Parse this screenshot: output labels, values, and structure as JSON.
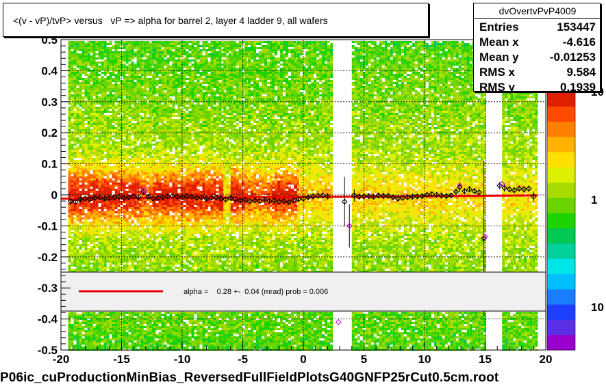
{
  "title": "<(v - vP)/tvP> versus   vP => alpha for barrel 2, layer 4 ladder 9, all wafers",
  "stats": {
    "name": "dvOvertvPvP4009",
    "rows": [
      {
        "key": "Entries",
        "value": "153447"
      },
      {
        "key": "Mean x",
        "value": "-4.616"
      },
      {
        "key": "Mean y",
        "value": "-0.01253"
      },
      {
        "key": "RMS x",
        "value": "9.584"
      },
      {
        "key": "RMS y",
        "value": "0.1939"
      }
    ]
  },
  "fit_legend": {
    "line_color": "#ee0000",
    "text": "alpha =    0.28 +-  0.04 (mrad) prob = 0.006"
  },
  "footer": "P06ic_cuProductionMinBias_ReversedFullFieldPlotsG40GNFP25rCut0.5cm.root",
  "palette": {
    "labels": [
      "10",
      "1",
      "10"
    ],
    "colors": [
      "#9900cc",
      "#5a2fe6",
      "#1f3fff",
      "#1a7cff",
      "#00bfff",
      "#00e5e5",
      "#00d09a",
      "#00c853",
      "#1ed300",
      "#6ad400",
      "#a8dc00",
      "#ddf000",
      "#ffe000",
      "#ffb300",
      "#ff8000",
      "#ff4b00",
      "#e01e00"
    ]
  },
  "chart_data": {
    "type": "heatmap",
    "xlim": [
      -20,
      20
    ],
    "ylim": [
      -0.5,
      0.5
    ],
    "x_ticks": [
      "-20",
      "-15",
      "-10",
      "-5",
      "0",
      "5",
      "10",
      "15",
      "20"
    ],
    "y_ticks": [
      "-0.5",
      "-0.4",
      "-0.3",
      "-0.2",
      "-0.1",
      "0",
      "0.1",
      "0.2",
      "0.3",
      "0.4",
      "0.5"
    ],
    "grid": true,
    "band_columns": [
      {
        "x0": -19.4,
        "x1": -13.4,
        "w": 0.95
      },
      {
        "x0": -13.4,
        "x1": -12.4,
        "w": 0.75
      },
      {
        "x0": -12.4,
        "x1": -6.6,
        "w": 0.92
      },
      {
        "x0": -6.6,
        "x1": -6.0,
        "w": 0.5
      },
      {
        "x0": -6.0,
        "x1": -4.8,
        "w": 0.95
      },
      {
        "x0": -4.8,
        "x1": -2.6,
        "w": 0.7
      },
      {
        "x0": -2.6,
        "x1": -0.5,
        "w": 0.9
      },
      {
        "x0": -0.5,
        "x1": 2.3,
        "w": 0.55
      },
      {
        "x0": 4.0,
        "x1": 15.0,
        "w": 0.5
      },
      {
        "x0": 16.4,
        "x1": 19.2,
        "w": 0.45
      }
    ],
    "profile_points": [
      {
        "x": -19.2,
        "y": -0.02,
        "ey": 0.01
      },
      {
        "x": -18.8,
        "y": -0.022,
        "ey": 0.008
      },
      {
        "x": -18.4,
        "y": -0.015,
        "ey": 0.008
      },
      {
        "x": -18.0,
        "y": -0.012,
        "ey": 0.007
      },
      {
        "x": -17.6,
        "y": -0.014,
        "ey": 0.007
      },
      {
        "x": -17.2,
        "y": -0.01,
        "ey": 0.007
      },
      {
        "x": -16.8,
        "y": -0.008,
        "ey": 0.006
      },
      {
        "x": -16.4,
        "y": -0.012,
        "ey": 0.006
      },
      {
        "x": -16.0,
        "y": -0.01,
        "ey": 0.006
      },
      {
        "x": -15.6,
        "y": -0.008,
        "ey": 0.006
      },
      {
        "x": -15.2,
        "y": -0.006,
        "ey": 0.006
      },
      {
        "x": -14.8,
        "y": -0.01,
        "ey": 0.006
      },
      {
        "x": -14.4,
        "y": -0.008,
        "ey": 0.006
      },
      {
        "x": -14.0,
        "y": -0.005,
        "ey": 0.006
      },
      {
        "x": -13.6,
        "y": -0.008,
        "ey": 0.006
      },
      {
        "x": -13.2,
        "y": 0.01,
        "ey": 0.01
      },
      {
        "x": -12.8,
        "y": -0.006,
        "ey": 0.008
      },
      {
        "x": -12.4,
        "y": -0.012,
        "ey": 0.006
      },
      {
        "x": -12.0,
        "y": -0.01,
        "ey": 0.006
      },
      {
        "x": -11.6,
        "y": -0.008,
        "ey": 0.006
      },
      {
        "x": -11.2,
        "y": -0.005,
        "ey": 0.006
      },
      {
        "x": -10.8,
        "y": -0.003,
        "ey": 0.006
      },
      {
        "x": -10.4,
        "y": -0.006,
        "ey": 0.006
      },
      {
        "x": -10.0,
        "y": -0.008,
        "ey": 0.006
      },
      {
        "x": -9.6,
        "y": -0.004,
        "ey": 0.006
      },
      {
        "x": -9.2,
        "y": -0.006,
        "ey": 0.006
      },
      {
        "x": -8.8,
        "y": -0.01,
        "ey": 0.006
      },
      {
        "x": -8.4,
        "y": -0.008,
        "ey": 0.006
      },
      {
        "x": -8.0,
        "y": -0.012,
        "ey": 0.006
      },
      {
        "x": -7.6,
        "y": -0.01,
        "ey": 0.006
      },
      {
        "x": -7.2,
        "y": -0.008,
        "ey": 0.006
      },
      {
        "x": -6.8,
        "y": -0.012,
        "ey": 0.007
      },
      {
        "x": -6.4,
        "y": -0.015,
        "ey": 0.008
      },
      {
        "x": -6.0,
        "y": -0.01,
        "ey": 0.006
      },
      {
        "x": -5.6,
        "y": -0.014,
        "ey": 0.006
      },
      {
        "x": -5.2,
        "y": -0.018,
        "ey": 0.006
      },
      {
        "x": -4.8,
        "y": -0.016,
        "ey": 0.006
      },
      {
        "x": -4.4,
        "y": -0.02,
        "ey": 0.006
      },
      {
        "x": -4.0,
        "y": -0.018,
        "ey": 0.006
      },
      {
        "x": -3.6,
        "y": -0.02,
        "ey": 0.006
      },
      {
        "x": -3.2,
        "y": -0.016,
        "ey": 0.006
      },
      {
        "x": -2.8,
        "y": -0.02,
        "ey": 0.006
      },
      {
        "x": -2.4,
        "y": -0.018,
        "ey": 0.006
      },
      {
        "x": -2.0,
        "y": -0.022,
        "ey": 0.006
      },
      {
        "x": -1.6,
        "y": -0.02,
        "ey": 0.006
      },
      {
        "x": -1.2,
        "y": -0.024,
        "ey": 0.006
      },
      {
        "x": -0.8,
        "y": -0.018,
        "ey": 0.006
      },
      {
        "x": -0.4,
        "y": -0.014,
        "ey": 0.007
      },
      {
        "x": 0.0,
        "y": -0.012,
        "ey": 0.008
      },
      {
        "x": 0.4,
        "y": -0.008,
        "ey": 0.008
      },
      {
        "x": 0.8,
        "y": -0.005,
        "ey": 0.008
      },
      {
        "x": 1.2,
        "y": -0.003,
        "ey": 0.008
      },
      {
        "x": 1.6,
        "y": -0.002,
        "ey": 0.009
      },
      {
        "x": 2.0,
        "y": -0.005,
        "ey": 0.01
      },
      {
        "x": 3.4,
        "y": -0.022,
        "ey": 0.08
      },
      {
        "x": 3.8,
        "y": -0.1,
        "ey": 0.07
      },
      {
        "x": 4.2,
        "y": -0.002,
        "ey": 0.02
      },
      {
        "x": 4.6,
        "y": -0.006,
        "ey": 0.01
      },
      {
        "x": 5.0,
        "y": -0.005,
        "ey": 0.009
      },
      {
        "x": 5.4,
        "y": -0.004,
        "ey": 0.009
      },
      {
        "x": 5.8,
        "y": -0.006,
        "ey": 0.009
      },
      {
        "x": 6.2,
        "y": -0.002,
        "ey": 0.009
      },
      {
        "x": 6.6,
        "y": -0.004,
        "ey": 0.009
      },
      {
        "x": 7.0,
        "y": -0.003,
        "ey": 0.009
      },
      {
        "x": 7.4,
        "y": -0.008,
        "ey": 0.009
      },
      {
        "x": 7.8,
        "y": -0.012,
        "ey": 0.009
      },
      {
        "x": 8.2,
        "y": -0.01,
        "ey": 0.009
      },
      {
        "x": 8.6,
        "y": -0.008,
        "ey": 0.009
      },
      {
        "x": 9.0,
        "y": -0.006,
        "ey": 0.009
      },
      {
        "x": 9.4,
        "y": -0.005,
        "ey": 0.009
      },
      {
        "x": 9.8,
        "y": -0.004,
        "ey": 0.009
      },
      {
        "x": 10.2,
        "y": 0.0,
        "ey": 0.009
      },
      {
        "x": 10.6,
        "y": 0.002,
        "ey": 0.009
      },
      {
        "x": 11.0,
        "y": 0.0,
        "ey": 0.009
      },
      {
        "x": 11.4,
        "y": -0.002,
        "ey": 0.009
      },
      {
        "x": 11.8,
        "y": -0.004,
        "ey": 0.009
      },
      {
        "x": 12.2,
        "y": -0.002,
        "ey": 0.009
      },
      {
        "x": 12.6,
        "y": 0.01,
        "ey": 0.01
      },
      {
        "x": 12.9,
        "y": 0.025,
        "ey": 0.015
      },
      {
        "x": 13.3,
        "y": 0.012,
        "ey": 0.01
      },
      {
        "x": 13.7,
        "y": 0.018,
        "ey": 0.01
      },
      {
        "x": 14.1,
        "y": 0.012,
        "ey": 0.01
      },
      {
        "x": 14.5,
        "y": 0.008,
        "ey": 0.01
      },
      {
        "x": 14.9,
        "y": -0.14,
        "ey": 0.25
      },
      {
        "x": 16.2,
        "y": 0.03,
        "ey": 0.012
      },
      {
        "x": 16.6,
        "y": 0.022,
        "ey": 0.012
      },
      {
        "x": 17.0,
        "y": 0.018,
        "ey": 0.01
      },
      {
        "x": 17.4,
        "y": 0.015,
        "ey": 0.01
      },
      {
        "x": 17.8,
        "y": 0.02,
        "ey": 0.01
      },
      {
        "x": 18.2,
        "y": 0.018,
        "ey": 0.01
      },
      {
        "x": 18.6,
        "y": 0.02,
        "ey": 0.01
      },
      {
        "x": 19.0,
        "y": -0.005,
        "ey": 0.015
      }
    ],
    "magenta_points": [
      {
        "x": -13.1,
        "y": 0.015
      },
      {
        "x": 3.8,
        "y": -0.1
      },
      {
        "x": 2.9,
        "y": -0.41
      },
      {
        "x": 15.0,
        "y": -0.135
      },
      {
        "x": 12.9,
        "y": 0.03
      },
      {
        "x": 16.4,
        "y": 0.035
      }
    ],
    "fit_line": {
      "x0": -20,
      "y0": -0.012,
      "x1": 19.3,
      "y1": -0.002
    }
  }
}
